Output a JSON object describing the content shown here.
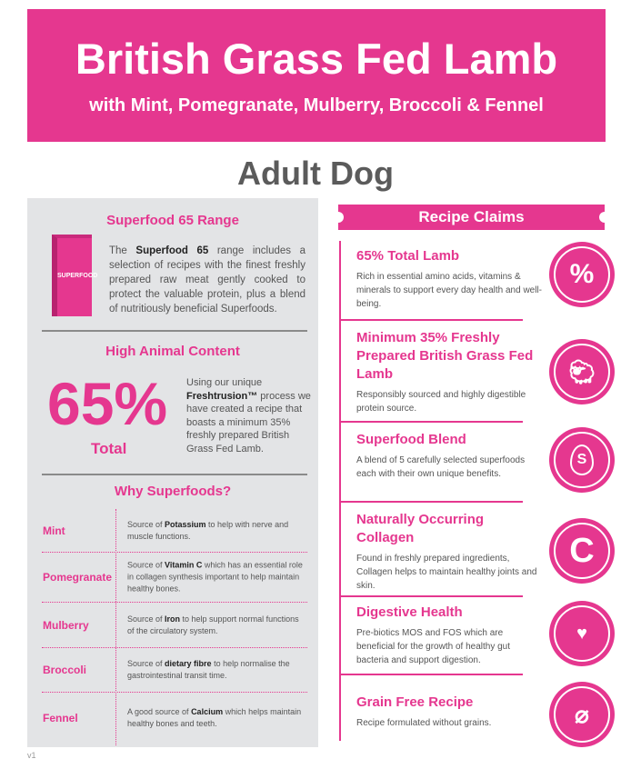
{
  "header": {
    "title": "British Grass Fed Lamb",
    "subtitle": "with Mint, Pomegranate, Mulberry, Broccoli & Fennel"
  },
  "audience": "Adult Dog",
  "colors": {
    "brand_pink": "#e5378f",
    "panel_gray": "#e3e4e6"
  },
  "left": {
    "range_title": "Superfood 65 Range",
    "bag_label": "SUPERFOOD",
    "intro": {
      "pre": "The ",
      "bold": "Superfood 65",
      "post": " range includes a selection of recipes with the finest freshly prepared raw meat gently cooked to protect the valuable protein, plus a blend of nutritiously beneficial Superfoods."
    },
    "animal_title": "High Animal Content",
    "big_value": "65%",
    "big_label": "Total",
    "animal_text": {
      "pre": "Using our unique ",
      "bold": "Freshtrusion™",
      "post": " process we have created a recipe that boasts a minimum 35% freshly prepared British Grass Fed Lamb."
    },
    "why_title": "Why Superfoods?",
    "superfoods": [
      {
        "name": "Mint",
        "pre": "Source of ",
        "bold": "Potassium",
        "post": " to help with nerve and muscle functions."
      },
      {
        "name": "Pomegranate",
        "pre": "Source of ",
        "bold": "Vitamin C",
        "post": " which has an essential role in collagen synthesis important to help maintain healthy bones."
      },
      {
        "name": "Mulberry",
        "pre": "Source of ",
        "bold": "Iron",
        "post": " to help support normal functions of the circulatory system."
      },
      {
        "name": "Broccoli",
        "pre": "Source of ",
        "bold": "dietary fibre",
        "post": " to help normalise the gastrointestinal transit time."
      },
      {
        "name": "Fennel",
        "pre": "A good source of ",
        "bold": "Calcium",
        "post": " which helps maintain healthy bones and teeth."
      }
    ],
    "version": "v1"
  },
  "claims": {
    "title": "Recipe Claims",
    "items": [
      {
        "title": "65% Total Lamb",
        "text": "Rich in essential amino acids, vitamins & minerals to support every day health and well-being.",
        "icon": "percent-icon"
      },
      {
        "title": "Minimum 35% Freshly Prepared British Grass Fed Lamb",
        "text": "Responsibly sourced and highly digestible protein source.",
        "icon": "sheep-icon"
      },
      {
        "title": "Superfood Blend",
        "text": "A blend of  5 carefully selected superfoods each with their own unique benefits.",
        "icon": "superfood-leaf-icon"
      },
      {
        "title": "Naturally Occurring Collagen",
        "text": "Found in freshly prepared ingredients, Collagen helps to maintain healthy joints and skin.",
        "icon": "collagen-icon"
      },
      {
        "title": "Digestive Health",
        "text": "Pre-biotics MOS and FOS which are beneficial for the growth of healthy gut bacteria and support digestion.",
        "icon": "stomach-icon"
      },
      {
        "title": "Grain Free Recipe",
        "text": "Recipe formulated without grains.",
        "icon": "no-grain-icon"
      }
    ]
  }
}
